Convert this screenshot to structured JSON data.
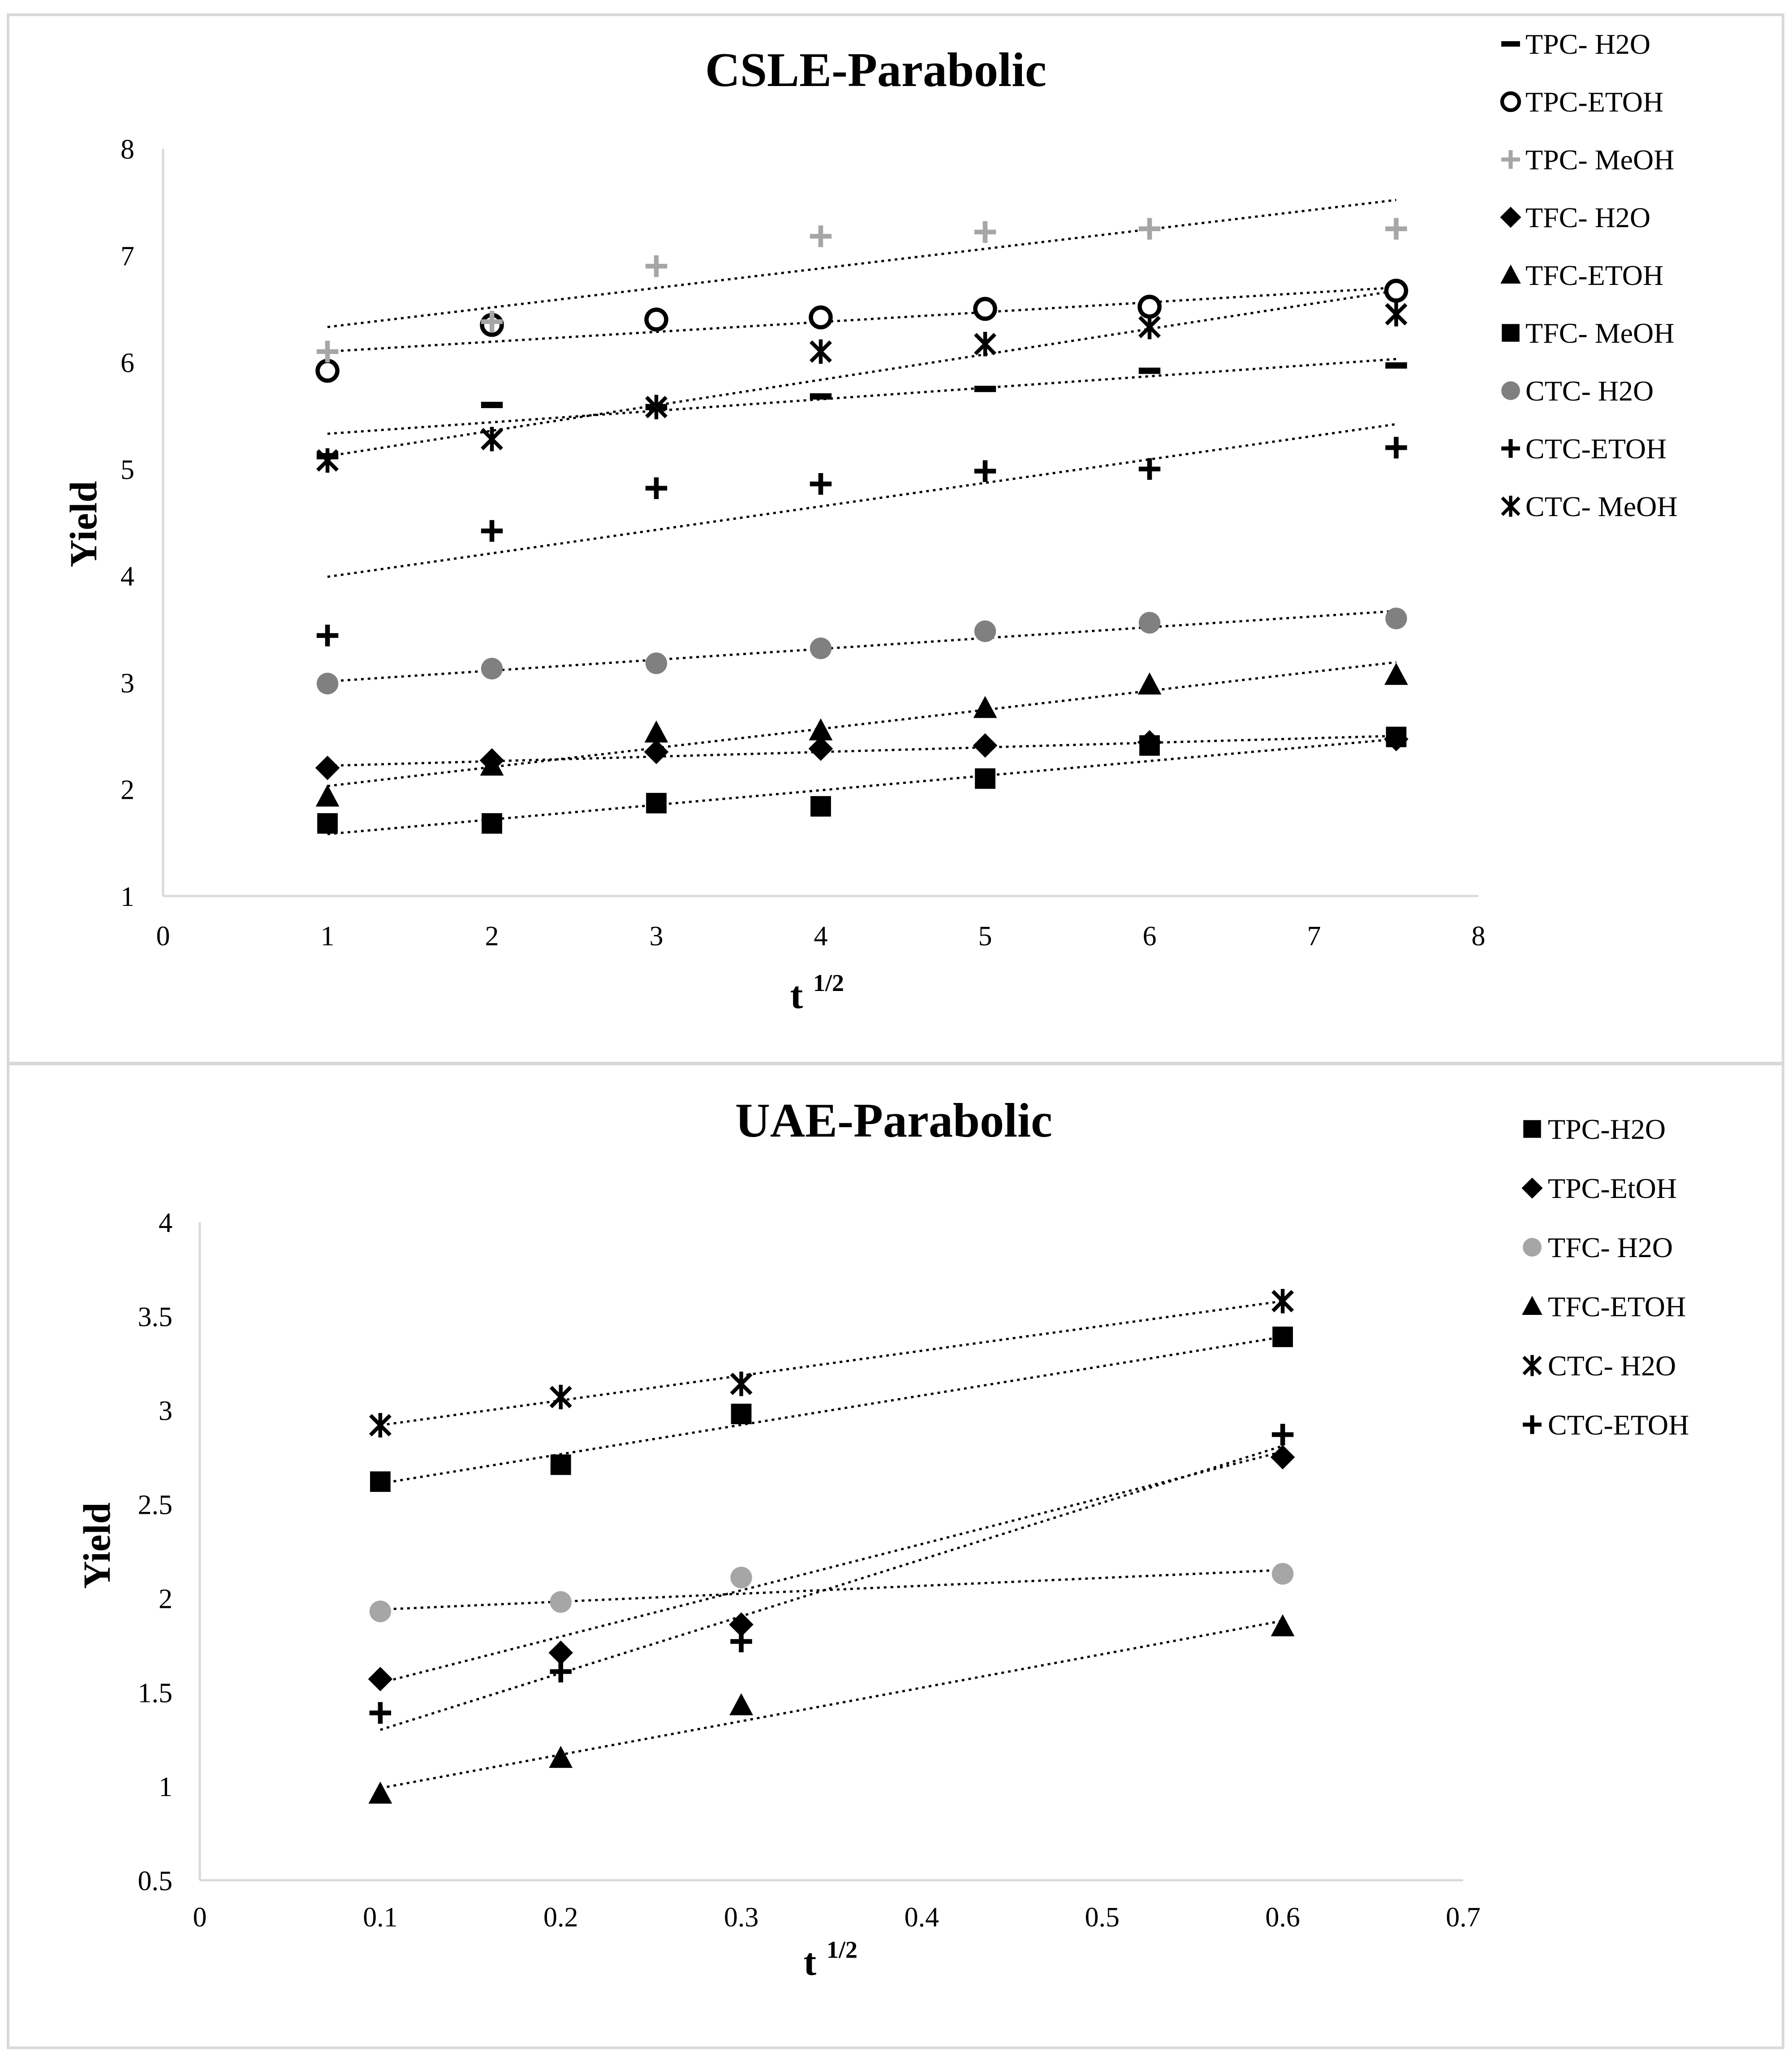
{
  "chart_data": [
    {
      "type": "scatter",
      "title": "CSLE-Parabolic",
      "xlabel": "t",
      "xlabel_sup": "1/2",
      "ylabel": "Yield",
      "xlim": [
        0,
        8
      ],
      "ylim": [
        1,
        8
      ],
      "xticks": [
        "0",
        "1",
        "2",
        "3",
        "4",
        "5",
        "6",
        "7",
        "8"
      ],
      "yticks": [
        "1",
        "2",
        "3",
        "4",
        "5",
        "6",
        "7",
        "8"
      ],
      "x": [
        1,
        2,
        3,
        4,
        5,
        6,
        7.5
      ],
      "series": [
        {
          "name": "TPC- H2O",
          "marker": "dash",
          "color": "#000000",
          "values": [
            5.12,
            5.6,
            5.58,
            5.68,
            5.75,
            5.92,
            5.97
          ],
          "trend": [
            5.33,
            6.03
          ]
        },
        {
          "name": "TPC-ETOH",
          "marker": "circle-open",
          "color": "#000000",
          "values": [
            5.92,
            6.35,
            6.4,
            6.42,
            6.5,
            6.52,
            6.67
          ],
          "trend": [
            6.1,
            6.7
          ]
        },
        {
          "name": "TPC- MeOH",
          "marker": "plus",
          "color": "#a6a6a6",
          "values": [
            6.1,
            6.38,
            6.9,
            7.18,
            7.22,
            7.25,
            7.25
          ],
          "trend": [
            6.33,
            7.52
          ]
        },
        {
          "name": "TFC- H2O",
          "marker": "diamond",
          "color": "#000000",
          "values": [
            2.2,
            2.27,
            2.35,
            2.38,
            2.41,
            2.44,
            2.47
          ],
          "trend": [
            2.22,
            2.5
          ]
        },
        {
          "name": "TFC-ETOH",
          "marker": "triangle",
          "color": "#000000",
          "values": [
            1.93,
            2.22,
            2.53,
            2.55,
            2.76,
            2.98,
            3.07
          ],
          "trend": [
            2.03,
            3.19
          ]
        },
        {
          "name": "TFC- MeOH",
          "marker": "square",
          "color": "#000000",
          "values": [
            1.68,
            1.68,
            1.87,
            1.84,
            2.1,
            2.41,
            2.49
          ],
          "trend": [
            1.58,
            2.47
          ]
        },
        {
          "name": "CTC- H2O",
          "marker": "circle",
          "color": "#808080",
          "values": [
            2.99,
            3.13,
            3.18,
            3.32,
            3.48,
            3.56,
            3.6
          ],
          "trend": [
            3.01,
            3.67
          ]
        },
        {
          "name": "CTC-ETOH",
          "marker": "plus",
          "color": "#000000",
          "values": [
            3.44,
            4.42,
            4.82,
            4.86,
            4.98,
            5.0,
            5.2
          ],
          "trend": [
            3.99,
            5.42
          ]
        },
        {
          "name": "CTC- MeOH",
          "marker": "asterisk",
          "color": "#000000",
          "values": [
            5.08,
            5.28,
            5.58,
            6.1,
            6.17,
            6.33,
            6.45
          ],
          "trend": [
            5.12,
            6.67
          ]
        }
      ]
    },
    {
      "type": "scatter",
      "title": "UAE-Parabolic",
      "xlabel": "t",
      "xlabel_sup": "1/2",
      "ylabel": "Yield",
      "xlim": [
        0,
        0.7
      ],
      "ylim": [
        0.5,
        4
      ],
      "xticks": [
        "0",
        "0.1",
        "0.2",
        "0.3",
        "0.4",
        "0.5",
        "0.6",
        "0.7"
      ],
      "yticks": [
        "0.5",
        "1",
        "1.5",
        "2",
        "2.5",
        "3",
        "3.5",
        "4"
      ],
      "x": [
        0.1,
        0.2,
        0.3,
        0.6
      ],
      "series": [
        {
          "name": "TPC-H2O",
          "marker": "square",
          "color": "#000000",
          "values": [
            2.62,
            2.71,
            2.98,
            3.39
          ],
          "trend": [
            2.61,
            3.39
          ]
        },
        {
          "name": "TPC-EtOH",
          "marker": "diamond",
          "color": "#000000",
          "values": [
            1.57,
            1.71,
            1.86,
            2.75
          ],
          "trend": [
            1.55,
            2.78
          ]
        },
        {
          "name": "TFC- H2O",
          "marker": "circle",
          "color": "#a6a6a6",
          "values": [
            1.93,
            1.98,
            2.11,
            2.13
          ],
          "trend": [
            1.94,
            2.15
          ]
        },
        {
          "name": "TFC-ETOH",
          "marker": "triangle",
          "color": "#000000",
          "values": [
            0.96,
            1.15,
            1.43,
            1.85
          ],
          "trend": [
            0.99,
            1.88
          ]
        },
        {
          "name": "CTC- H2O",
          "marker": "asterisk",
          "color": "#000000",
          "values": [
            2.92,
            3.07,
            3.14,
            3.58
          ],
          "trend": [
            2.92,
            3.58
          ]
        },
        {
          "name": "CTC-ETOH",
          "marker": "plus",
          "color": "#000000",
          "values": [
            1.39,
            1.61,
            1.77,
            2.87
          ],
          "trend": [
            1.3,
            2.81
          ]
        }
      ]
    }
  ]
}
